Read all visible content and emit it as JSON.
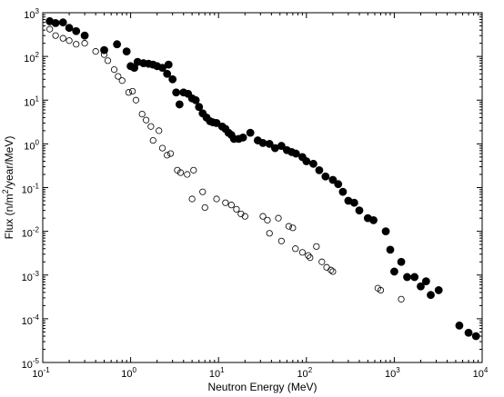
{
  "chart_data": {
    "type": "scatter",
    "title": "",
    "xlabel": "Neutron Energy (MeV)",
    "ylabel": {
      "before_sup": "Flux (n/m",
      "sup": "2",
      "after_sup": "/year/MeV)"
    },
    "x_scale": "log",
    "y_scale": "log",
    "xlim": [
      0.1,
      10000
    ],
    "ylim": [
      1e-05,
      1000
    ],
    "x_ticks": [
      {
        "value": 0.1,
        "base": "10",
        "exp": "-1"
      },
      {
        "value": 1,
        "base": "10",
        "exp": "0"
      },
      {
        "value": 10,
        "base": "10",
        "exp": "1"
      },
      {
        "value": 100,
        "base": "10",
        "exp": "2"
      },
      {
        "value": 1000,
        "base": "10",
        "exp": "3"
      },
      {
        "value": 10000,
        "base": "10",
        "exp": "4"
      }
    ],
    "y_ticks": [
      {
        "value": 1e-05,
        "base": "10",
        "exp": "-5"
      },
      {
        "value": 0.0001,
        "base": "10",
        "exp": "-4"
      },
      {
        "value": 0.001,
        "base": "10",
        "exp": "-3"
      },
      {
        "value": 0.01,
        "base": "10",
        "exp": "-2"
      },
      {
        "value": 0.1,
        "base": "10",
        "exp": "-1"
      },
      {
        "value": 1,
        "base": "10",
        "exp": "0"
      },
      {
        "value": 10,
        "base": "10",
        "exp": "1"
      },
      {
        "value": 100,
        "base": "10",
        "exp": "2"
      },
      {
        "value": 1000,
        "base": "10",
        "exp": "3"
      }
    ],
    "grid": false,
    "legend": "none",
    "series": [
      {
        "marker": "filled-circle",
        "color": "#000000",
        "points": [
          [
            0.12,
            640
          ],
          [
            0.14,
            580
          ],
          [
            0.17,
            600
          ],
          [
            0.2,
            450
          ],
          [
            0.24,
            380
          ],
          [
            0.3,
            300
          ],
          [
            0.5,
            140
          ],
          [
            0.7,
            190
          ],
          [
            0.9,
            130
          ],
          [
            1.0,
            60
          ],
          [
            1.1,
            55
          ],
          [
            1.2,
            75
          ],
          [
            1.4,
            70
          ],
          [
            1.6,
            68
          ],
          [
            1.8,
            65
          ],
          [
            2.0,
            60
          ],
          [
            2.3,
            55
          ],
          [
            2.6,
            40
          ],
          [
            2.7,
            65
          ],
          [
            3.0,
            30
          ],
          [
            3.3,
            15
          ],
          [
            3.6,
            8
          ],
          [
            4.0,
            15
          ],
          [
            4.5,
            14
          ],
          [
            5.0,
            11
          ],
          [
            5.5,
            10
          ],
          [
            6.0,
            7
          ],
          [
            6.6,
            5
          ],
          [
            7.3,
            4
          ],
          [
            8.0,
            3.3
          ],
          [
            8.7,
            3.1
          ],
          [
            9.5,
            3.0
          ],
          [
            11,
            2.5
          ],
          [
            12,
            2.2
          ],
          [
            13,
            1.8
          ],
          [
            14,
            1.6
          ],
          [
            15,
            1.3
          ],
          [
            17,
            1.3
          ],
          [
            19,
            1.4
          ],
          [
            23,
            1.8
          ],
          [
            28,
            1.2
          ],
          [
            32,
            1.05
          ],
          [
            38,
            1.0
          ],
          [
            44,
            0.8
          ],
          [
            52,
            0.9
          ],
          [
            60,
            0.72
          ],
          [
            68,
            0.65
          ],
          [
            76,
            0.6
          ],
          [
            90,
            0.5
          ],
          [
            100,
            0.4
          ],
          [
            120,
            0.35
          ],
          [
            140,
            0.25
          ],
          [
            165,
            0.18
          ],
          [
            200,
            0.15
          ],
          [
            230,
            0.12
          ],
          [
            260,
            0.08
          ],
          [
            300,
            0.05
          ],
          [
            350,
            0.045
          ],
          [
            400,
            0.03
          ],
          [
            500,
            0.02
          ],
          [
            580,
            0.018
          ],
          [
            800,
            0.01
          ],
          [
            900,
            0.0038
          ],
          [
            1000,
            0.0012
          ],
          [
            1200,
            0.002
          ],
          [
            1400,
            0.0009
          ],
          [
            1700,
            0.0009
          ],
          [
            2000,
            0.00055
          ],
          [
            2300,
            0.00072
          ],
          [
            2600,
            0.00035
          ],
          [
            3200,
            0.00045
          ],
          [
            5500,
            7e-05
          ],
          [
            7000,
            4.8e-05
          ],
          [
            8500,
            4e-05
          ]
        ]
      },
      {
        "marker": "open-circle",
        "color": "#000000",
        "points": [
          [
            0.12,
            420
          ],
          [
            0.14,
            300
          ],
          [
            0.17,
            260
          ],
          [
            0.2,
            230
          ],
          [
            0.24,
            190
          ],
          [
            0.3,
            200
          ],
          [
            0.4,
            130
          ],
          [
            0.5,
            110
          ],
          [
            0.55,
            80
          ],
          [
            0.65,
            50
          ],
          [
            0.72,
            35
          ],
          [
            0.8,
            28
          ],
          [
            0.95,
            15
          ],
          [
            1.05,
            16
          ],
          [
            1.15,
            10
          ],
          [
            1.35,
            4.8
          ],
          [
            1.5,
            3.5
          ],
          [
            1.7,
            2.5
          ],
          [
            1.8,
            1.2
          ],
          [
            2.1,
            2.0
          ],
          [
            2.3,
            0.8
          ],
          [
            2.6,
            0.55
          ],
          [
            2.85,
            0.6
          ],
          [
            3.4,
            0.25
          ],
          [
            3.7,
            0.22
          ],
          [
            4.4,
            0.2
          ],
          [
            5.0,
            0.055
          ],
          [
            5.2,
            0.25
          ],
          [
            6.6,
            0.08
          ],
          [
            7.0,
            0.035
          ],
          [
            9.5,
            0.055
          ],
          [
            12,
            0.045
          ],
          [
            14,
            0.04
          ],
          [
            16,
            0.032
          ],
          [
            18,
            0.025
          ],
          [
            20,
            0.022
          ],
          [
            32,
            0.022
          ],
          [
            36,
            0.018
          ],
          [
            38,
            0.009
          ],
          [
            48,
            0.02
          ],
          [
            52,
            0.006
          ],
          [
            63,
            0.013
          ],
          [
            70,
            0.012
          ],
          [
            75,
            0.004
          ],
          [
            90,
            0.0033
          ],
          [
            105,
            0.0028
          ],
          [
            110,
            0.0025
          ],
          [
            130,
            0.0045
          ],
          [
            150,
            0.002
          ],
          [
            170,
            0.0015
          ],
          [
            190,
            0.0013
          ],
          [
            200,
            0.0012
          ],
          [
            650,
            0.0005
          ],
          [
            700,
            0.00045
          ],
          [
            1200,
            0.00028
          ]
        ]
      }
    ]
  }
}
